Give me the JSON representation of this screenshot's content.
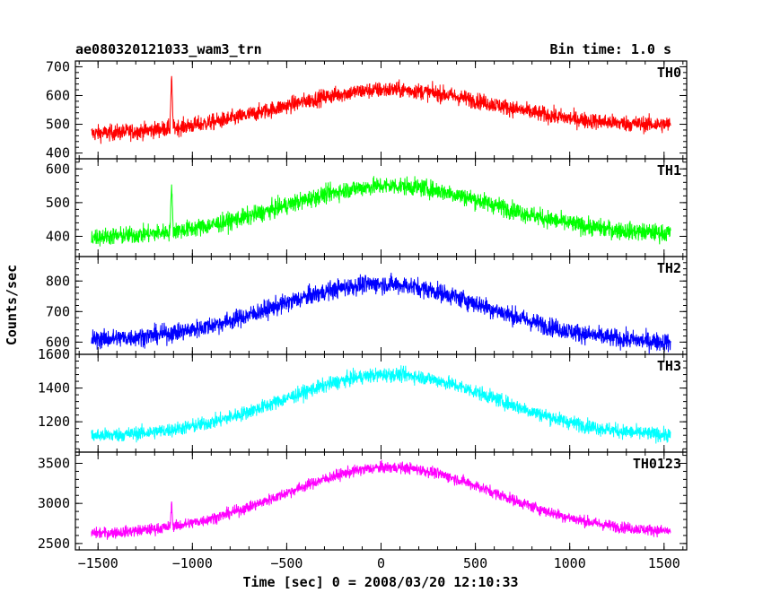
{
  "chart_data": {
    "type": "line",
    "title": "ae080320121033_wam3_trn",
    "subtitle": "Bin time: 1.0 s",
    "xlabel": "Time [sec] 0 = 2008/03/20 12:10:33",
    "ylabel": "Counts/sec",
    "xlim": [
      -1620,
      1620
    ],
    "x_ticks": [
      -1500,
      -1000,
      -500,
      0,
      500,
      1000,
      1500
    ],
    "x_tick_labels": [
      "−1500",
      "−1000",
      "−500",
      "0",
      "500",
      "1000",
      "1500"
    ],
    "x_range": [
      -1535,
      1535
    ],
    "grid": false,
    "panels": [
      {
        "name": "TH0",
        "color": "#ff0000",
        "ylim": [
          380,
          720
        ],
        "yticks": [
          400,
          500,
          600,
          700
        ],
        "ytick_labels": [
          "400",
          "500",
          "600",
          "700"
        ],
        "baseline_start": 465,
        "baseline_end": 495,
        "peak": 620,
        "peak_time": 50,
        "noise": 28,
        "spike_time": -1110,
        "spike_peak": 665
      },
      {
        "name": "TH1",
        "color": "#00ff00",
        "ylim": [
          340,
          630
        ],
        "yticks": [
          400,
          500,
          600
        ],
        "ytick_labels": [
          "400",
          "500",
          "600"
        ],
        "baseline_start": 395,
        "baseline_end": 405,
        "peak": 550,
        "peak_time": 50,
        "noise": 26,
        "spike_time": -1110,
        "spike_peak": 555
      },
      {
        "name": "TH2",
        "color": "#0000ff",
        "ylim": [
          560,
          880
        ],
        "yticks": [
          600,
          700,
          800
        ],
        "ytick_labels": [
          "600",
          "700",
          "800"
        ],
        "baseline_start": 605,
        "baseline_end": 595,
        "peak": 790,
        "peak_time": 0,
        "noise": 30,
        "spike_time": null,
        "spike_peak": null
      },
      {
        "name": "TH3",
        "color": "#00ffff",
        "ylim": [
          1020,
          1600
        ],
        "yticks": [
          1200,
          1400,
          1600
        ],
        "ytick_labels": [
          "1200",
          "1400",
          "1600"
        ],
        "baseline_start": 1110,
        "baseline_end": 1110,
        "peak": 1480,
        "peak_time": 50,
        "noise": 42,
        "spike_time": null,
        "spike_peak": null
      },
      {
        "name": "TH0123",
        "color": "#ff00ff",
        "ylim": [
          2420,
          3640
        ],
        "yticks": [
          2500,
          3000,
          3500
        ],
        "ytick_labels": [
          "2500",
          "3000",
          "3500"
        ],
        "baseline_start": 2610,
        "baseline_end": 2630,
        "peak": 3450,
        "peak_time": 50,
        "noise": 70,
        "spike_time": -1110,
        "spike_peak": 3020
      }
    ]
  }
}
